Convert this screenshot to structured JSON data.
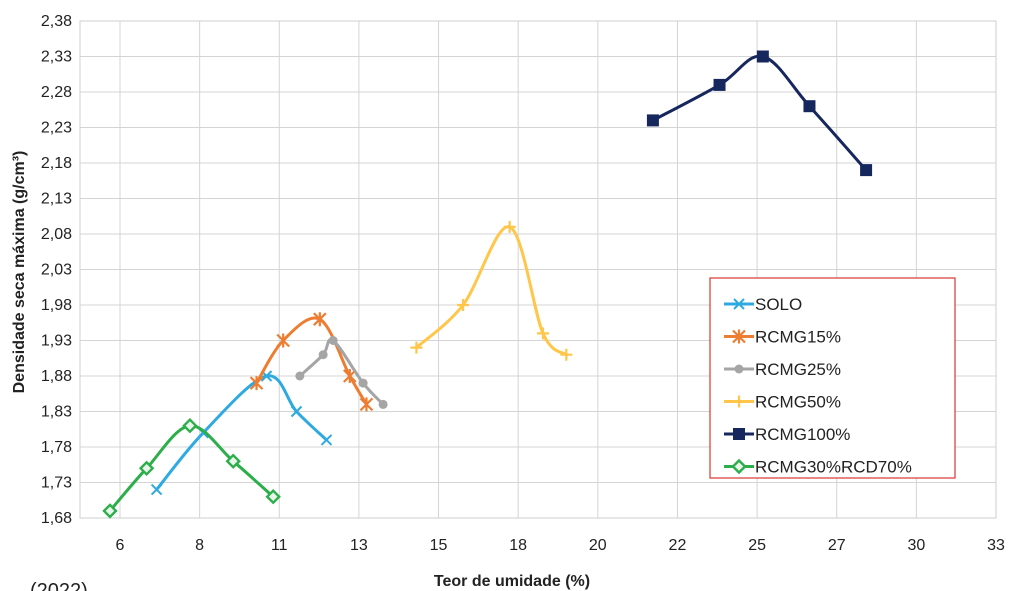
{
  "chart_data": {
    "type": "line",
    "xlabel": "Teor de umidade (%)",
    "ylabel": "Densidade seca máxima (g/cm³)",
    "xticks": [
      "6",
      "8",
      "11",
      "13",
      "15",
      "18",
      "20",
      "22",
      "25",
      "27",
      "30",
      "33"
    ],
    "yticks": [
      "1,68",
      "1,73",
      "1,78",
      "1,83",
      "1,88",
      "1,93",
      "1,98",
      "2,03",
      "2,08",
      "2,13",
      "2,18",
      "2,23",
      "2,28",
      "2,33",
      "2,38"
    ],
    "ylim": [
      1.68,
      2.38
    ],
    "grid": true,
    "legend_position": "right",
    "source_fragment": "(2022)",
    "series": [
      {
        "name": "SOLO",
        "color": "#2eaae1",
        "marker": "x",
        "x": [
          7.8,
          9.2,
          11.1,
          12.0,
          12.9
        ],
        "y": [
          1.72,
          1.8,
          1.88,
          1.83,
          1.79
        ]
      },
      {
        "name": "RCMG15%",
        "color": "#ed7d31",
        "marker": "star",
        "x": [
          10.8,
          11.6,
          12.7,
          13.6,
          14.1
        ],
        "y": [
          1.87,
          1.93,
          1.96,
          1.88,
          1.84
        ]
      },
      {
        "name": "RCMG25%",
        "color": "#a5a5a5",
        "marker": "circle",
        "x": [
          12.1,
          12.8,
          13.1,
          14.0,
          14.6
        ],
        "y": [
          1.88,
          1.91,
          1.93,
          1.87,
          1.84
        ]
      },
      {
        "name": "RCMG50%",
        "color": "#ffc64a",
        "marker": "plus",
        "x": [
          15.6,
          17.0,
          18.4,
          19.4,
          20.1
        ],
        "y": [
          1.92,
          1.98,
          2.09,
          1.94,
          1.91
        ]
      },
      {
        "name": "RCMG100%",
        "color": "#16275e",
        "marker": "square",
        "x": [
          22.7,
          24.7,
          26.0,
          27.4,
          29.1
        ],
        "y": [
          2.24,
          2.29,
          2.33,
          2.26,
          2.17
        ]
      },
      {
        "name": "RCMG30%RCD70%",
        "color": "#2cae4a",
        "marker": "diamond",
        "x": [
          6.4,
          7.5,
          8.8,
          10.1,
          11.3
        ],
        "y": [
          1.69,
          1.75,
          1.81,
          1.76,
          1.71
        ]
      }
    ]
  }
}
